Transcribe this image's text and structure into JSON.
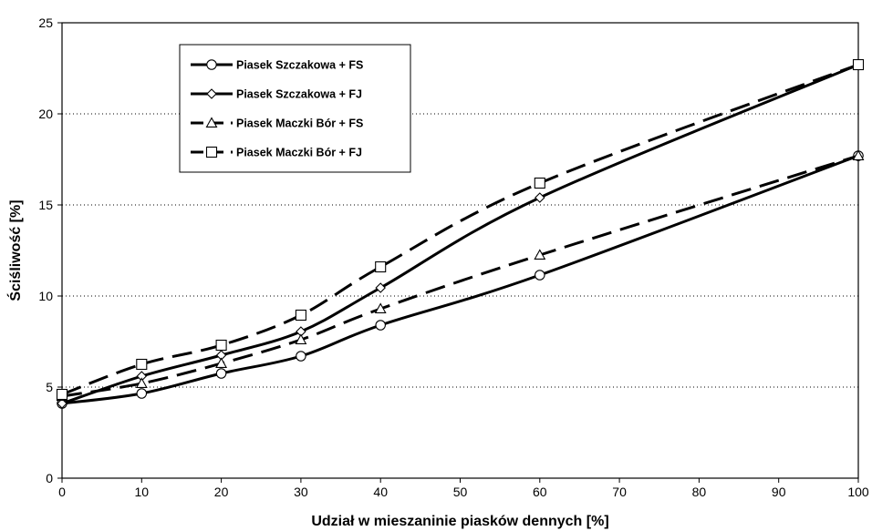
{
  "chart_data": {
    "type": "line",
    "title": "",
    "xlabel": "Udział w mieszaninie piasków dennych [%]",
    "ylabel": "Ściśliwość [%]",
    "xlim": [
      0,
      100
    ],
    "ylim": [
      0,
      25
    ],
    "xticks": [
      0,
      10,
      20,
      30,
      40,
      50,
      60,
      70,
      80,
      90,
      100
    ],
    "yticks": [
      0,
      5,
      10,
      15,
      20,
      25
    ],
    "grid": true,
    "grid_style": "dotted, horizontal",
    "legend_position": "top-left (inside plot)",
    "x": [
      0,
      10,
      20,
      30,
      40,
      60,
      100
    ],
    "series": [
      {
        "name": "Piasek Szczakowa + FS",
        "values": [
          4.1,
          4.65,
          5.75,
          6.7,
          8.4,
          11.15,
          17.7
        ],
        "marker": "circle",
        "line": "solid"
      },
      {
        "name": "Piasek Szczakowa + FJ",
        "values": [
          4.1,
          5.6,
          6.75,
          8.05,
          10.45,
          15.4,
          22.7
        ],
        "marker": "diamond",
        "line": "solid"
      },
      {
        "name": "Piasek Maczki Bór + FS",
        "values": [
          4.5,
          5.2,
          6.3,
          7.6,
          9.3,
          12.25,
          17.7
        ],
        "marker": "triangle",
        "line": "dashed"
      },
      {
        "name": "Piasek Maczki Bór + FJ",
        "values": [
          4.6,
          6.25,
          7.3,
          8.95,
          11.6,
          16.2,
          22.7
        ],
        "marker": "square",
        "line": "dashed"
      }
    ]
  }
}
